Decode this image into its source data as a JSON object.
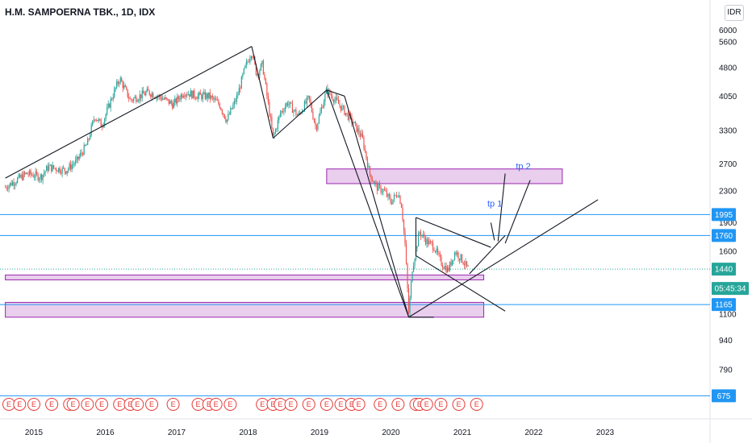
{
  "header": {
    "title": "H.M. SAMPOERNA TBK., 1D, IDX",
    "currency_button": "IDR"
  },
  "colors": {
    "up": "#26a69a",
    "down": "#ef5350",
    "trendline": "#131722",
    "hline": "#2196f3",
    "zone_fill": "#e1bee7",
    "zone_border": "#9c27b0",
    "last_price_bg": "#26a69a",
    "badge_bg": "#2196f3"
  },
  "chart_data": {
    "type": "candlestick",
    "title": "H.M. SAMPOERNA TBK., 1D, IDX",
    "y_scale": "log",
    "ylim": [
      600,
      6600
    ],
    "x_range": [
      2014.6,
      2024.0
    ],
    "x_tick_labels": [
      "2015",
      "2016",
      "2017",
      "2018",
      "2019",
      "2020",
      "2021",
      "2022",
      "2023"
    ],
    "x_ticks": [
      2015,
      2016,
      2017,
      2018,
      2019,
      2020,
      2021,
      2022,
      2023
    ],
    "y_tick_labels": [
      "6000",
      "5600",
      "4800",
      "4050",
      "3300",
      "2700",
      "2300",
      "1900",
      "1600",
      "1100",
      "940",
      "790"
    ],
    "y_ticks": [
      6000,
      5600,
      4800,
      4050,
      3300,
      2700,
      2300,
      1900,
      1600,
      1100,
      940,
      790
    ],
    "price_path": [
      [
        2014.6,
        2350
      ],
      [
        2014.9,
        2550
      ],
      [
        2015.1,
        2500
      ],
      [
        2015.2,
        2650
      ],
      [
        2015.45,
        2600
      ],
      [
        2015.6,
        2750
      ],
      [
        2015.75,
        3050
      ],
      [
        2015.85,
        3600
      ],
      [
        2015.95,
        3400
      ],
      [
        2016.1,
        4050
      ],
      [
        2016.2,
        4500
      ],
      [
        2016.35,
        3950
      ],
      [
        2016.6,
        4150
      ],
      [
        2016.8,
        4000
      ],
      [
        2016.95,
        3850
      ],
      [
        2017.1,
        4150
      ],
      [
        2017.3,
        4050
      ],
      [
        2017.45,
        4050
      ],
      [
        2017.6,
        3850
      ],
      [
        2017.7,
        3500
      ],
      [
        2017.85,
        4050
      ],
      [
        2017.95,
        4750
      ],
      [
        2018.05,
        5300
      ],
      [
        2018.12,
        4600
      ],
      [
        2018.2,
        4900
      ],
      [
        2018.35,
        3150
      ],
      [
        2018.45,
        3650
      ],
      [
        2018.55,
        3900
      ],
      [
        2018.7,
        3600
      ],
      [
        2018.85,
        4000
      ],
      [
        2018.95,
        3350
      ],
      [
        2019.1,
        4200
      ],
      [
        2019.3,
        3800
      ],
      [
        2019.45,
        3500
      ],
      [
        2019.6,
        3150
      ],
      [
        2019.7,
        2550
      ],
      [
        2019.8,
        2350
      ],
      [
        2019.9,
        2300
      ],
      [
        2020.0,
        2150
      ],
      [
        2020.1,
        2280
      ],
      [
        2020.15,
        2100
      ],
      [
        2020.2,
        1650
      ],
      [
        2020.25,
        1100
      ],
      [
        2020.3,
        1450
      ],
      [
        2020.4,
        1800
      ],
      [
        2020.5,
        1700
      ],
      [
        2020.6,
        1650
      ],
      [
        2020.7,
        1500
      ],
      [
        2020.8,
        1430
      ],
      [
        2020.9,
        1600
      ],
      [
        2021.0,
        1520
      ],
      [
        2021.08,
        1440
      ]
    ],
    "last_price": 1440,
    "countdown": "05:45:34",
    "horizontal_lines": [
      1995,
      1760,
      1165,
      675
    ],
    "price_badges": [
      {
        "value": 1995,
        "label": "1995"
      },
      {
        "value": 1760,
        "label": "1760"
      },
      {
        "value": 1440,
        "label": "1440"
      },
      {
        "value": 1165,
        "label": "1165"
      },
      {
        "value": 675,
        "label": "675"
      }
    ],
    "zones": [
      {
        "x1": 2019.1,
        "x2": 2022.4,
        "y_low": 2400,
        "y_high": 2620
      },
      {
        "x1": 2014.6,
        "x2": 2021.3,
        "y_low": 1350,
        "y_high": 1390
      },
      {
        "x1": 2014.6,
        "x2": 2021.3,
        "y_low": 1080,
        "y_high": 1180
      }
    ],
    "trendlines": [
      [
        [
          2014.6,
          2480
        ],
        [
          2018.05,
          5450
        ]
      ],
      [
        [
          2018.05,
          5450
        ],
        [
          2018.35,
          3150
        ]
      ],
      [
        [
          2018.35,
          3150
        ],
        [
          2019.1,
          4200
        ]
      ],
      [
        [
          2019.1,
          4200
        ],
        [
          2019.35,
          4050
        ]
      ],
      [
        [
          2019.35,
          4050
        ],
        [
          2020.25,
          1080
        ]
      ],
      [
        [
          2019.1,
          4200
        ],
        [
          2020.25,
          1080
        ]
      ],
      [
        [
          2020.25,
          1080
        ],
        [
          2022.9,
          2180
        ]
      ],
      [
        [
          2020.25,
          1080
        ],
        [
          2020.6,
          1080
        ]
      ],
      [
        [
          2020.35,
          1960
        ],
        [
          2021.4,
          1640
        ]
      ],
      [
        [
          2020.35,
          1560
        ],
        [
          2021.6,
          1120
        ]
      ],
      [
        [
          2020.35,
          1960
        ],
        [
          2020.35,
          1560
        ]
      ],
      [
        [
          2021.1,
          1400
        ],
        [
          2021.6,
          1760
        ]
      ],
      [
        [
          2021.4,
          1900
        ],
        [
          2021.45,
          1710
        ]
      ],
      [
        [
          2021.5,
          1700
        ],
        [
          2021.6,
          2550
        ]
      ],
      [
        [
          2021.6,
          1680
        ],
        [
          2021.95,
          2450
        ]
      ]
    ],
    "annotations": [
      {
        "text": "tp 1",
        "x": 2021.35,
        "y": 2090
      },
      {
        "text": "tp 2",
        "x": 2021.75,
        "y": 2620
      }
    ],
    "earnings_events": [
      2014.65,
      2014.8,
      2015.0,
      2015.25,
      2015.5,
      2015.55,
      2015.75,
      2015.95,
      2016.2,
      2016.35,
      2016.45,
      2016.65,
      2016.95,
      2017.3,
      2017.45,
      2017.55,
      2017.75,
      2018.2,
      2018.35,
      2018.45,
      2018.6,
      2018.85,
      2019.1,
      2019.3,
      2019.45,
      2019.55,
      2019.85,
      2020.1,
      2020.35,
      2020.4,
      2020.5,
      2020.7,
      2020.95,
      2021.2
    ],
    "event_label": "E"
  }
}
